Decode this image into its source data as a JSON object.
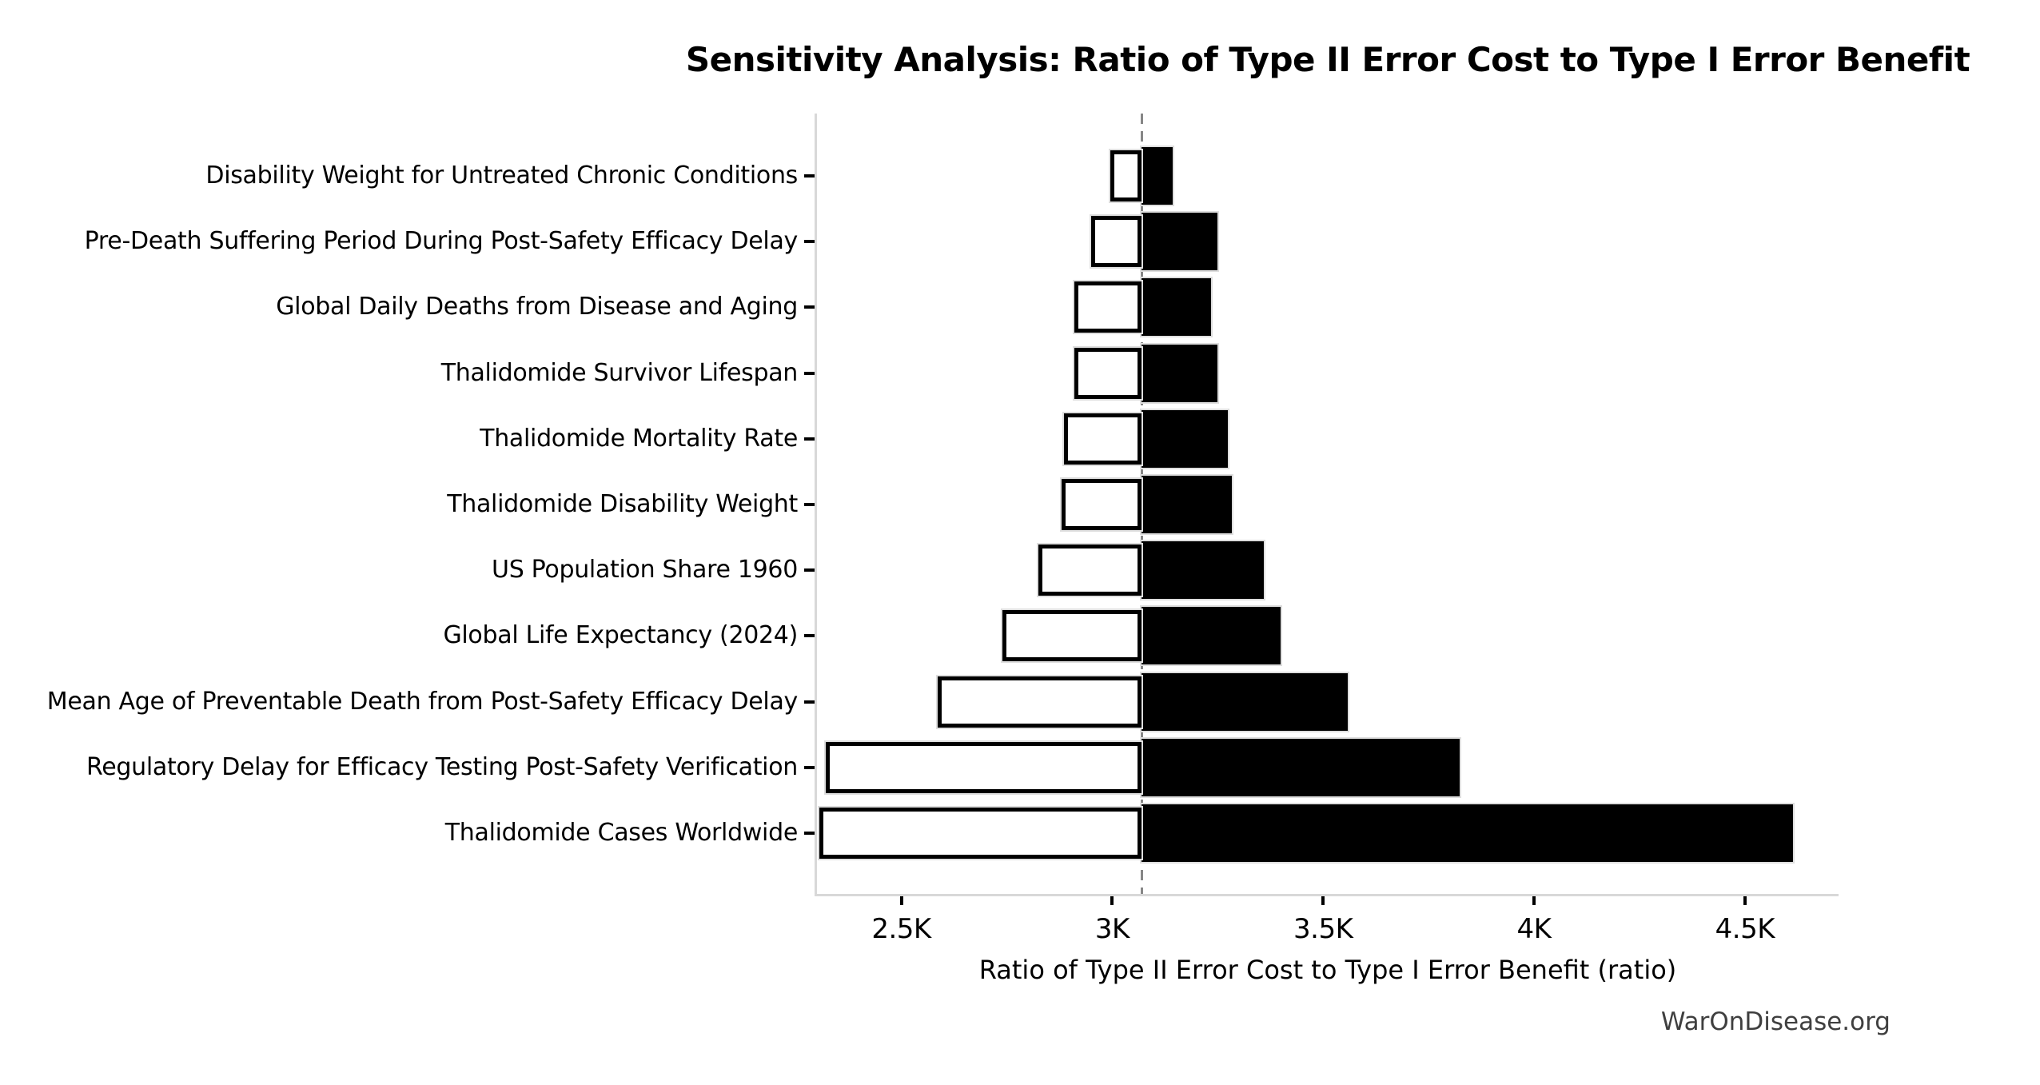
{
  "watermark": "WarOnDisease.org",
  "chart_data": {
    "type": "bar",
    "subtype": "tornado-sensitivity",
    "title": "Sensitivity Analysis: Ratio of Type II Error Cost to Type I Error Benefit",
    "xlabel": "Ratio of Type II Error Cost to Type I Error Benefit (ratio)",
    "ylabel": "",
    "base_value": 3070,
    "xlim": [
      2300,
      4722
    ],
    "grid": false,
    "legend": "none",
    "x_ticks": [
      {
        "value": 2500,
        "label": "2.5K"
      },
      {
        "value": 3000,
        "label": "3K"
      },
      {
        "value": 3500,
        "label": "3.5K"
      },
      {
        "value": 4000,
        "label": "4K"
      },
      {
        "value": 4500,
        "label": "4.5K"
      }
    ],
    "rows": [
      {
        "label": "Disability Weight for Untreated Chronic Conditions",
        "low": 3000,
        "high": 3140
      },
      {
        "label": "Pre-Death Suffering Period During Post-Safety Efficacy Delay",
        "low": 2955,
        "high": 3245
      },
      {
        "label": "Global Daily Deaths from Disease and Aging",
        "low": 2915,
        "high": 3230
      },
      {
        "label": "Thalidomide Survivor Lifespan",
        "low": 2915,
        "high": 3245
      },
      {
        "label": "Thalidomide Mortality Rate",
        "low": 2890,
        "high": 3270
      },
      {
        "label": "Thalidomide Disability Weight",
        "low": 2885,
        "high": 3280
      },
      {
        "label": "US Population Share 1960",
        "low": 2830,
        "high": 3355
      },
      {
        "label": "Global Life Expectancy (2024)",
        "low": 2745,
        "high": 3395
      },
      {
        "label": "Mean Age of Preventable Death from Post-Safety Efficacy Delay",
        "low": 2590,
        "high": 3555
      },
      {
        "label": "Regulatory Delay for Efficacy Testing Post-Safety Verification",
        "low": 2325,
        "high": 3820
      },
      {
        "label": "Thalidomide Cases Worldwide",
        "low": 2310,
        "high": 4610
      }
    ],
    "colors": {
      "low_bar_fill": "#ffffff",
      "low_bar_edge": "#000000",
      "high_bar_fill": "#000000",
      "baseline_line": "#878787",
      "spine": "#d8d8d8",
      "text": "#000000",
      "watermark_text": "#3f3f3f"
    }
  }
}
